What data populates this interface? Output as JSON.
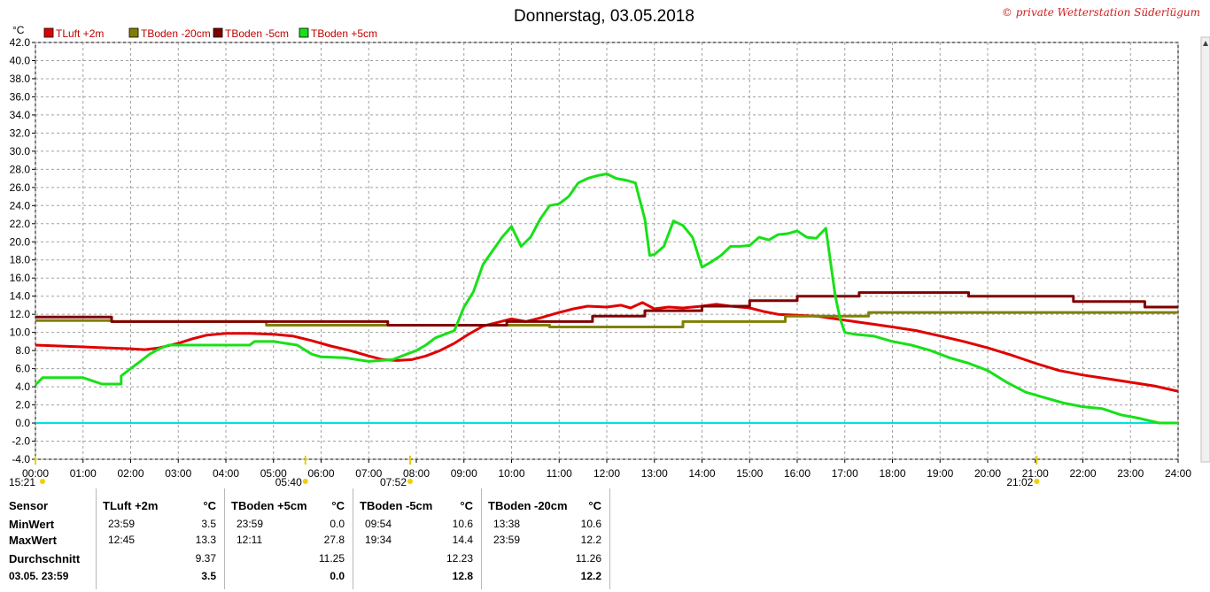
{
  "title": "Donnerstag, 03.05.2018",
  "copyright": "© private Wetterstation Süderlügum",
  "chart_data": {
    "type": "line",
    "y_unit": "°C",
    "ylim": [
      -4,
      42
    ],
    "y_ticks": [
      "42.0",
      "40.0",
      "38.0",
      "36.0",
      "34.0",
      "32.0",
      "30.0",
      "28.0",
      "26.0",
      "24.0",
      "22.0",
      "20.0",
      "18.0",
      "16.0",
      "14.0",
      "12.0",
      "10.0",
      "8.0",
      "6.0",
      "4.0",
      "2.0",
      "0.0",
      "-2.0",
      "-4.0"
    ],
    "x_ticks": [
      "00:00",
      "01:00",
      "02:00",
      "03:00",
      "04:00",
      "05:00",
      "06:00",
      "07:00",
      "08:00",
      "09:00",
      "10:00",
      "11:00",
      "12:00",
      "13:00",
      "14:00",
      "15:00",
      "16:00",
      "17:00",
      "18:00",
      "19:00",
      "20:00",
      "21:00",
      "22:00",
      "23:00",
      "24:00"
    ],
    "grid": true,
    "legend_position": "top-left",
    "reference_line": {
      "y": 0.0,
      "color": "#00e0e0"
    },
    "markers": [
      {
        "label": "15:21",
        "x": 0.0
      },
      {
        "label": "05:40",
        "x": 5.67
      },
      {
        "label": "07:52",
        "x": 7.87
      },
      {
        "label": "21:02",
        "x": 21.03
      }
    ],
    "series": [
      {
        "name": "TLuft +2m",
        "color": "#e00000",
        "x": [
          0,
          0.5,
          1,
          1.5,
          2,
          2.3,
          2.6,
          3,
          3.3,
          3.6,
          4,
          4.5,
          5,
          5.4,
          5.8,
          6.2,
          6.6,
          7,
          7.3,
          7.6,
          7.9,
          8.2,
          8.5,
          8.8,
          9.1,
          9.4,
          9.7,
          10,
          10.3,
          10.6,
          11,
          11.3,
          11.6,
          12,
          12.3,
          12.5,
          12.75,
          13,
          13.3,
          13.6,
          14,
          14.3,
          14.6,
          15,
          15.3,
          15.6,
          16,
          16.4,
          16.8,
          17.2,
          17.6,
          18,
          18.5,
          19,
          19.5,
          20,
          20.5,
          21,
          21.5,
          22,
          22.5,
          23,
          23.5,
          24
        ],
        "y": [
          8.6,
          8.5,
          8.4,
          8.3,
          8.2,
          8.1,
          8.3,
          8.8,
          9.3,
          9.7,
          9.9,
          9.9,
          9.8,
          9.6,
          9.1,
          8.5,
          8.0,
          7.4,
          7.0,
          6.9,
          7.0,
          7.4,
          8.0,
          8.8,
          9.8,
          10.7,
          11.1,
          11.5,
          11.2,
          11.6,
          12.2,
          12.6,
          12.9,
          12.8,
          13.0,
          12.7,
          13.3,
          12.6,
          12.8,
          12.7,
          12.9,
          13.1,
          12.9,
          12.7,
          12.3,
          12.0,
          11.9,
          11.8,
          11.5,
          11.2,
          10.9,
          10.6,
          10.2,
          9.6,
          9.0,
          8.3,
          7.5,
          6.6,
          5.8,
          5.3,
          4.9,
          4.5,
          4.1,
          3.5
        ]
      },
      {
        "name": "TBoden -20cm",
        "color": "#808000",
        "x": [
          0,
          1.6,
          1.6,
          4.85,
          4.85,
          10.8,
          10.8,
          13.6,
          13.6,
          15.75,
          15.75,
          17.5,
          17.5,
          24
        ],
        "y": [
          11.3,
          11.3,
          11.2,
          11.2,
          10.8,
          10.8,
          10.6,
          10.6,
          11.2,
          11.2,
          11.8,
          11.8,
          12.2,
          12.2
        ]
      },
      {
        "name": "TBoden -5cm",
        "color": "#800000",
        "x": [
          0,
          1.6,
          1.6,
          7.4,
          7.4,
          9.9,
          9.9,
          11.7,
          11.7,
          12.8,
          12.8,
          14.0,
          14.0,
          15.0,
          15.0,
          16.0,
          16.0,
          17.3,
          17.3,
          19.6,
          19.6,
          21.8,
          21.8,
          23.3,
          23.3,
          24
        ],
        "y": [
          11.7,
          11.7,
          11.2,
          11.2,
          10.8,
          10.8,
          11.2,
          11.2,
          11.8,
          11.8,
          12.4,
          12.4,
          12.9,
          12.9,
          13.5,
          13.5,
          14.0,
          14.0,
          14.4,
          14.4,
          14.0,
          14.0,
          13.4,
          13.4,
          12.8,
          12.8
        ],
        "min": {
          "time": "09:54",
          "value": "10.6"
        },
        "max": {
          "time": "19:34",
          "value": "14.4"
        }
      },
      {
        "name": "TBoden +5cm",
        "color": "#18e018",
        "x": [
          0,
          0.15,
          0.3,
          1.0,
          1.4,
          1.8,
          1.8,
          2.0,
          2.2,
          2.4,
          2.6,
          2.8,
          3.0,
          3.5,
          4.0,
          4.5,
          4.6,
          5.0,
          5.5,
          5.8,
          6.0,
          6.5,
          7.0,
          7.5,
          7.8,
          8.0,
          8.2,
          8.4,
          8.6,
          8.8,
          9.0,
          9.2,
          9.4,
          9.6,
          9.8,
          10.0,
          10.2,
          10.4,
          10.6,
          10.8,
          11.0,
          11.2,
          11.4,
          11.6,
          11.8,
          12.0,
          12.2,
          12.4,
          12.6,
          12.8,
          12.9,
          13.0,
          13.2,
          13.4,
          13.6,
          13.8,
          14.0,
          14.2,
          14.4,
          14.6,
          14.8,
          15.0,
          15.2,
          15.4,
          15.6,
          15.8,
          16.0,
          16.2,
          16.4,
          16.6,
          16.8,
          16.9,
          17.0,
          17.2,
          17.6,
          18.0,
          18.4,
          18.8,
          19.2,
          19.6,
          20.0,
          20.4,
          20.8,
          21.2,
          21.6,
          22.0,
          22.4,
          22.8,
          23.2,
          23.6,
          24
        ],
        "y": [
          4.2,
          5.0,
          5.0,
          5.0,
          4.3,
          4.3,
          5.2,
          6.0,
          6.8,
          7.6,
          8.2,
          8.6,
          8.6,
          8.6,
          8.6,
          8.6,
          9.0,
          9.0,
          8.6,
          7.6,
          7.3,
          7.2,
          6.8,
          7.0,
          7.6,
          8.0,
          8.6,
          9.4,
          9.8,
          10.2,
          12.8,
          14.5,
          17.5,
          19.0,
          20.5,
          21.7,
          19.5,
          20.5,
          22.5,
          24.0,
          24.2,
          25.0,
          26.5,
          27.0,
          27.3,
          27.5,
          27.0,
          26.8,
          26.5,
          22.5,
          18.5,
          18.6,
          19.5,
          22.3,
          21.8,
          20.5,
          17.2,
          17.8,
          18.5,
          19.5,
          19.5,
          19.6,
          20.5,
          20.2,
          20.8,
          20.9,
          21.2,
          20.5,
          20.4,
          21.5,
          14.0,
          11.5,
          10.0,
          9.8,
          9.6,
          9.0,
          8.6,
          8.0,
          7.2,
          6.6,
          5.8,
          4.5,
          3.4,
          2.8,
          2.2,
          1.8,
          1.6,
          0.9,
          0.5,
          0.0,
          0.0
        ]
      }
    ]
  },
  "stats": {
    "sensor_header": "Sensor",
    "row_labels": [
      "MinWert",
      "MaxWert",
      "Durchschnitt",
      "03.05. 23:59"
    ],
    "unit": "°C",
    "sensors": [
      {
        "name": "TLuft +2m",
        "min_time": "23:59",
        "min": "3.5",
        "max_time": "12:45",
        "max": "13.3",
        "avg": "9.37",
        "current": "3.5"
      },
      {
        "name": "TBoden +5cm",
        "min_time": "23:59",
        "min": "0.0",
        "max_time": "12:11",
        "max": "27.8",
        "avg": "11.25",
        "current": "0.0"
      },
      {
        "name": "TBoden -5cm",
        "min_time": "09:54",
        "min": "10.6",
        "max_time": "19:34",
        "max": "14.4",
        "avg": "12.23",
        "current": "12.8"
      },
      {
        "name": "TBoden -20cm",
        "min_time": "13:38",
        "min": "10.6",
        "max_time": "23:59",
        "max": "12.2",
        "avg": "11.26",
        "current": "12.2"
      }
    ]
  }
}
